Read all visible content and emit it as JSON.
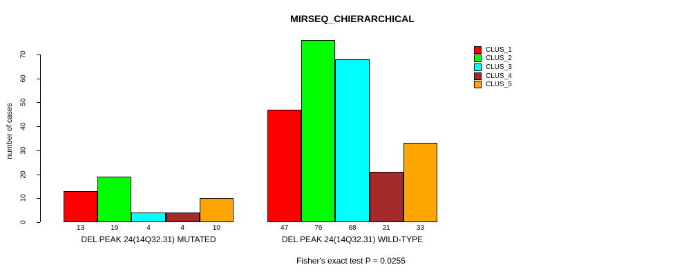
{
  "chart_data": {
    "type": "bar",
    "title": "MIRSEQ_CHIERARCHICAL",
    "subtitle": "Fisher's exact test P = 0.0255",
    "ylabel": "number of cases",
    "xlabel": "",
    "groups": [
      "DEL PEAK 24(14Q32.31) MUTATED",
      "DEL PEAK 24(14Q32.31) WILD-TYPE"
    ],
    "series": [
      {
        "name": "CLUS_1",
        "color": "#ff0000",
        "values": [
          13,
          47
        ]
      },
      {
        "name": "CLUS_2",
        "color": "#00ff00",
        "values": [
          19,
          76
        ]
      },
      {
        "name": "CLUS_3",
        "color": "#00ffff",
        "values": [
          4,
          68
        ]
      },
      {
        "name": "CLUS_4",
        "color": "#a52a2a",
        "values": [
          4,
          21
        ]
      },
      {
        "name": "CLUS_5",
        "color": "#ffa500",
        "values": [
          10,
          33
        ]
      }
    ],
    "yticks": [
      0,
      10,
      20,
      30,
      40,
      50,
      60,
      70
    ],
    "ylim": [
      0,
      76
    ],
    "bar_value_labels_shown": true,
    "legend_position": "right",
    "grid": false,
    "axis_color": "#000000",
    "background_color": "#ffffff"
  }
}
